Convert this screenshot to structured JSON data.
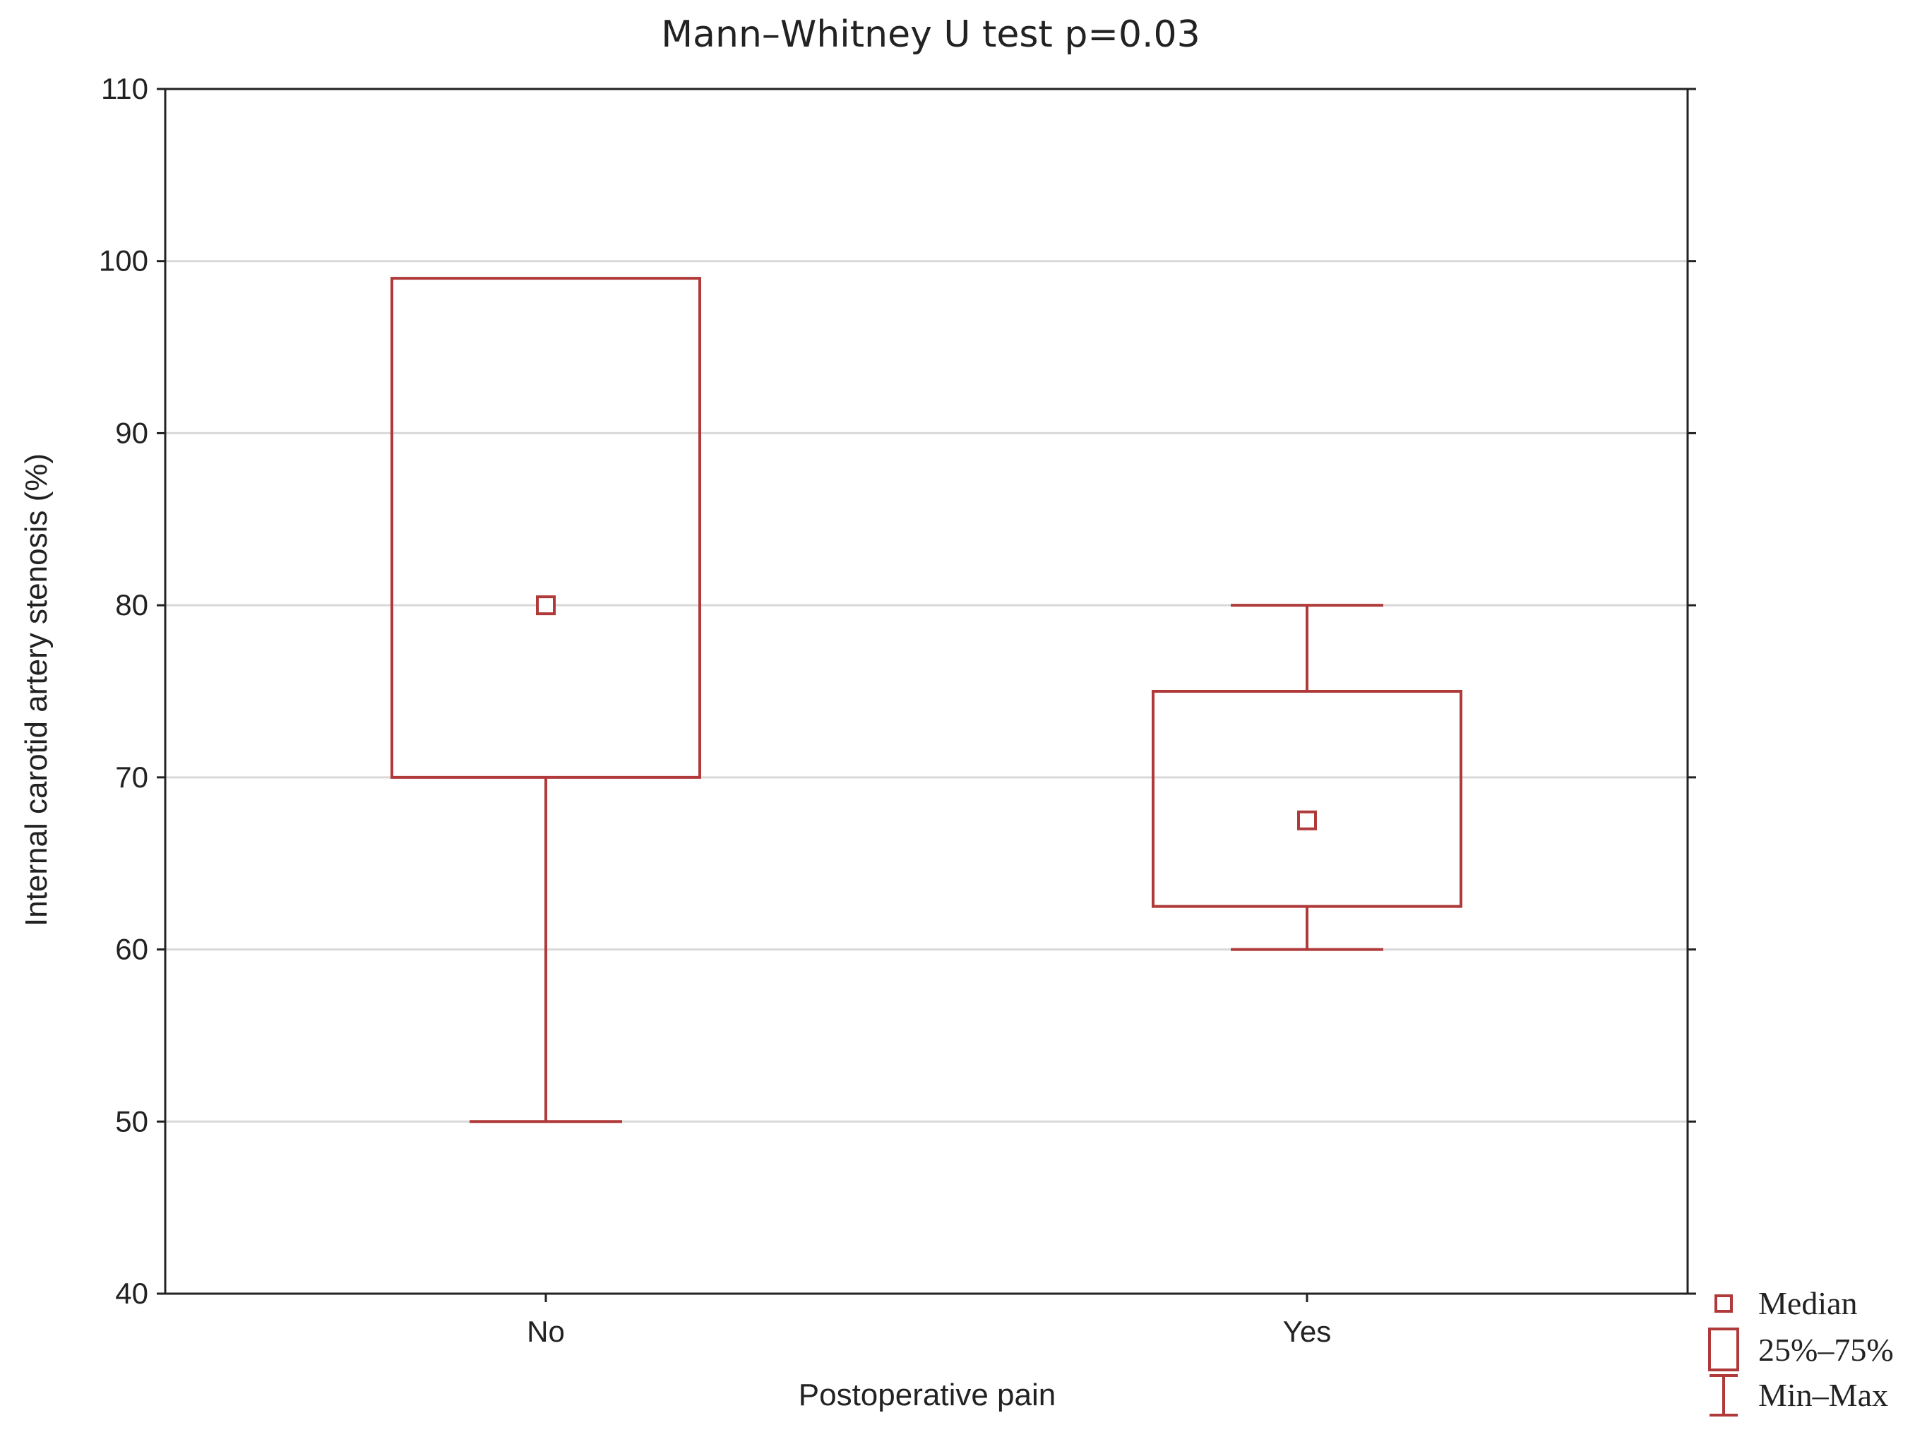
{
  "chart_data": {
    "type": "box",
    "title": "Mann–Whitney U test p=0.03",
    "xlabel": "Postoperative pain",
    "ylabel": "Internal carotid artery stenosis (%)",
    "ylim": [
      40,
      110
    ],
    "yticks": [
      40,
      50,
      60,
      70,
      80,
      90,
      100,
      110
    ],
    "grid": true,
    "categories": [
      "No",
      "Yes"
    ],
    "boxes": [
      {
        "category": "No",
        "min": 50,
        "q1": 70,
        "median": 80,
        "q3": 99,
        "max": 99
      },
      {
        "category": "Yes",
        "min": 60,
        "q1": 62.5,
        "median": 67.5,
        "q3": 75,
        "max": 80
      }
    ],
    "legend": {
      "position": "bottom-right",
      "items": [
        {
          "symbol": "median-marker",
          "label": "Median"
        },
        {
          "symbol": "box",
          "label": "25%–75%"
        },
        {
          "symbol": "whisker",
          "label": "Min–Max"
        }
      ]
    },
    "colors": {
      "box": "#b03a3a",
      "grid": "#d9d9d9",
      "axis": "#222222"
    }
  }
}
